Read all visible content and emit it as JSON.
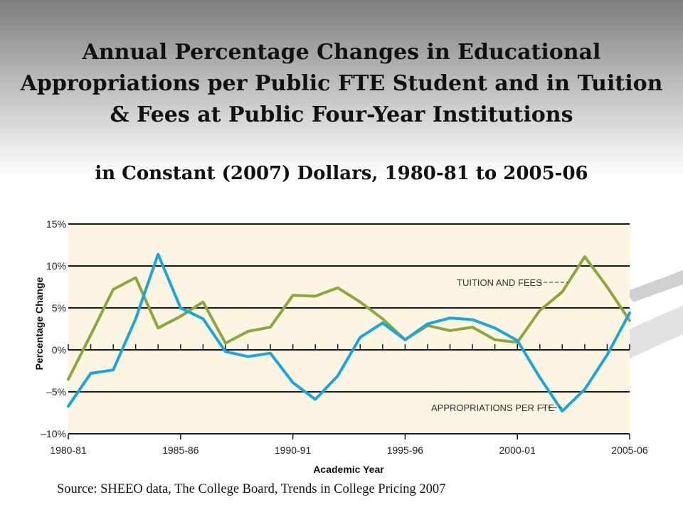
{
  "slide": {
    "title": "Annual Percentage Changes in Educational Appropriations per Public FTE Student and in Tuition & Fees at Public Four-Year Institutions",
    "subtitle": "in Constant (2007) Dollars, 1980-81 to 2005-06",
    "source": "Source: SHEEO data, The College Board, Trends in College Pricing 2007"
  },
  "colors": {
    "background_plot": "#fbf5e1",
    "tuition_series": "#8aa83c",
    "appropriations_series": "#19a6e0",
    "gridline": "#1a1a1a"
  },
  "chart_data": {
    "type": "line",
    "xlabel": "Academic Year",
    "ylabel": "Percentage Change",
    "x_tick_labels": [
      "1980-81",
      "1985-86",
      "1990-91",
      "1995-96",
      "2000-01",
      "2005-06"
    ],
    "x": [
      "1980-81",
      "1981-82",
      "1982-83",
      "1983-84",
      "1984-85",
      "1985-86",
      "1986-87",
      "1987-88",
      "1988-89",
      "1989-90",
      "1990-91",
      "1991-92",
      "1992-93",
      "1993-94",
      "1994-95",
      "1995-96",
      "1996-97",
      "1997-98",
      "1998-99",
      "1999-00",
      "2000-01",
      "2001-02",
      "2002-03",
      "2003-04",
      "2004-05",
      "2005-06"
    ],
    "y_tick_labels": [
      "15%",
      "10%",
      "5%",
      "0%",
      "–5%",
      "–10%"
    ],
    "ylim": [
      -10,
      15
    ],
    "series": [
      {
        "name": "TUITION AND FEES",
        "values": [
          -3.5,
          1.8,
          7.2,
          8.6,
          2.6,
          4.0,
          5.7,
          0.8,
          2.2,
          2.7,
          6.5,
          6.4,
          7.4,
          5.7,
          3.7,
          1.2,
          2.9,
          2.3,
          2.7,
          1.2,
          0.9,
          4.7,
          6.9,
          11.1,
          7.5,
          3.5
        ]
      },
      {
        "name": "APPROPRIATIONS PER FTE",
        "values": [
          -6.7,
          -2.8,
          -2.4,
          3.7,
          11.4,
          5.0,
          3.7,
          -0.2,
          -0.8,
          -0.4,
          -3.9,
          -5.9,
          -3.1,
          1.5,
          3.2,
          1.2,
          3.1,
          3.8,
          3.6,
          2.6,
          1.1,
          -3.3,
          -7.3,
          -4.7,
          -0.6,
          4.4
        ]
      }
    ],
    "grid": true,
    "gridlines_at": [
      15,
      10,
      5,
      0,
      -5,
      -10
    ]
  }
}
